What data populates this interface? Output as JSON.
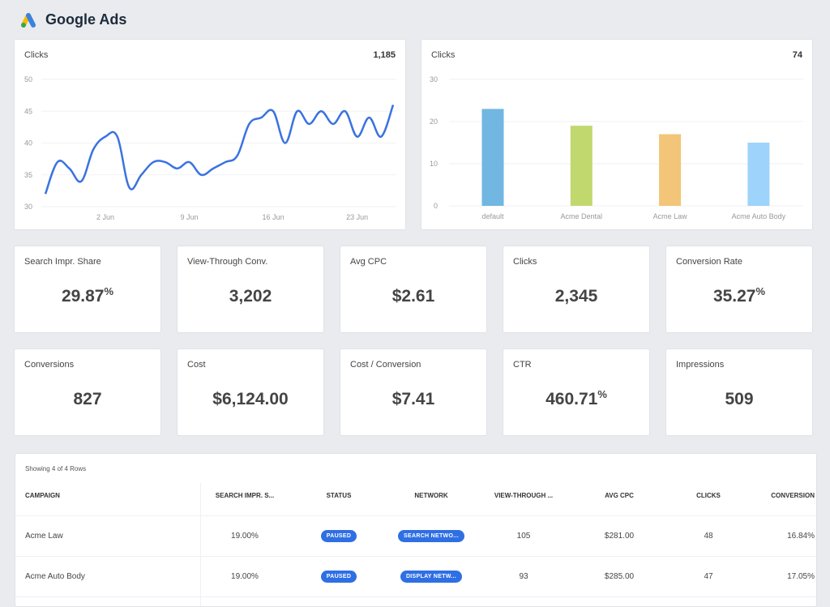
{
  "header": {
    "title": "Google Ads",
    "logo": "google-ads-logo"
  },
  "line_card": {
    "title": "Clicks",
    "total": "1,185"
  },
  "bar_card": {
    "title": "Clicks",
    "total": "74"
  },
  "chart_data": [
    {
      "type": "line",
      "title": "Clicks",
      "ylim": [
        30,
        50
      ],
      "yticks": [
        "30",
        "35",
        "40",
        "45",
        "50"
      ],
      "xticks": [
        {
          "label": "2 Jun",
          "index": 5
        },
        {
          "label": "9 Jun",
          "index": 12
        },
        {
          "label": "16 Jun",
          "index": 19
        },
        {
          "label": "23 Jun",
          "index": 26
        }
      ],
      "x_start": "28 May",
      "x_end": "26 Jun",
      "values": [
        32,
        37,
        36,
        34,
        39,
        41,
        41,
        33,
        35,
        37,
        37,
        36,
        37,
        35,
        36,
        37,
        38,
        43,
        44,
        45,
        40,
        45,
        43,
        45,
        43,
        45,
        41,
        44,
        41,
        46
      ],
      "color": "#3a73e0"
    },
    {
      "type": "bar",
      "title": "Clicks",
      "ylim": [
        0,
        30
      ],
      "yticks": [
        "0",
        "10",
        "20",
        "30"
      ],
      "categories": [
        "default",
        "Acme Dental",
        "Acme Law",
        "Acme Auto Body"
      ],
      "values": [
        23,
        19,
        17,
        15
      ],
      "colors": [
        "#72b6e2",
        "#c0d86e",
        "#f2c578",
        "#9ed3fb"
      ]
    }
  ],
  "kpis": [
    {
      "label": "Search Impr. Share",
      "value": "29.87",
      "suffix": "%"
    },
    {
      "label": "View-Through Conv.",
      "value": "3,202",
      "suffix": ""
    },
    {
      "label": "Avg CPC",
      "value": "$2.61",
      "suffix": ""
    },
    {
      "label": "Clicks",
      "value": "2,345",
      "suffix": ""
    },
    {
      "label": "Conversion Rate",
      "value": "35.27",
      "suffix": "%"
    },
    {
      "label": "Conversions",
      "value": "827",
      "suffix": ""
    },
    {
      "label": "Cost",
      "value": "$6,124.00",
      "suffix": ""
    },
    {
      "label": "Cost / Conversion",
      "value": "$7.41",
      "suffix": ""
    },
    {
      "label": "CTR",
      "value": "460.71",
      "suffix": "%"
    },
    {
      "label": "Impressions",
      "value": "509",
      "suffix": ""
    }
  ],
  "table": {
    "showing": "Showing 4 of 4 Rows",
    "columns": [
      "CAMPAIGN",
      "SEARCH IMPR. S...",
      "STATUS",
      "NETWORK",
      "VIEW-THROUGH ...",
      "AVG CPC",
      "CLICKS",
      "CONVERSION"
    ],
    "rows": [
      {
        "campaign": "Acme Law",
        "search_impr": "19.00%",
        "status": "PAUSED",
        "network": "SEARCH NETWO...",
        "view_through": "105",
        "avg_cpc": "$281.00",
        "clicks": "48",
        "conversion": "16.84%"
      },
      {
        "campaign": "Acme Auto Body",
        "search_impr": "19.00%",
        "status": "PAUSED",
        "network": "DISPLAY NETW...",
        "view_through": "93",
        "avg_cpc": "$285.00",
        "clicks": "47",
        "conversion": "17.05%"
      }
    ]
  }
}
